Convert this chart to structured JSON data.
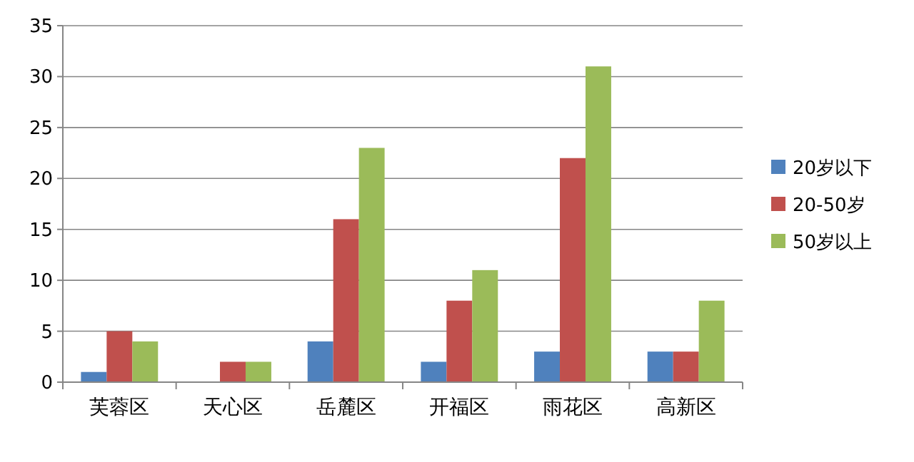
{
  "chart_data": {
    "type": "bar",
    "categories": [
      "芙蓉区",
      "天心区",
      "岳麓区",
      "开福区",
      "雨花区",
      "高新区"
    ],
    "series": [
      {
        "name": "20岁以下",
        "color": "#4f81bd",
        "values": [
          1,
          0,
          4,
          2,
          3,
          3
        ]
      },
      {
        "name": "20-50岁",
        "color": "#c0504d",
        "values": [
          5,
          2,
          16,
          8,
          22,
          3
        ]
      },
      {
        "name": "50岁以上",
        "color": "#9bbb59",
        "values": [
          4,
          2,
          23,
          11,
          31,
          8
        ]
      }
    ],
    "ylim": [
      0,
      35
    ],
    "yticks": [
      0,
      5,
      10,
      15,
      20,
      25,
      30,
      35
    ],
    "grid": "y",
    "legend": "right"
  }
}
